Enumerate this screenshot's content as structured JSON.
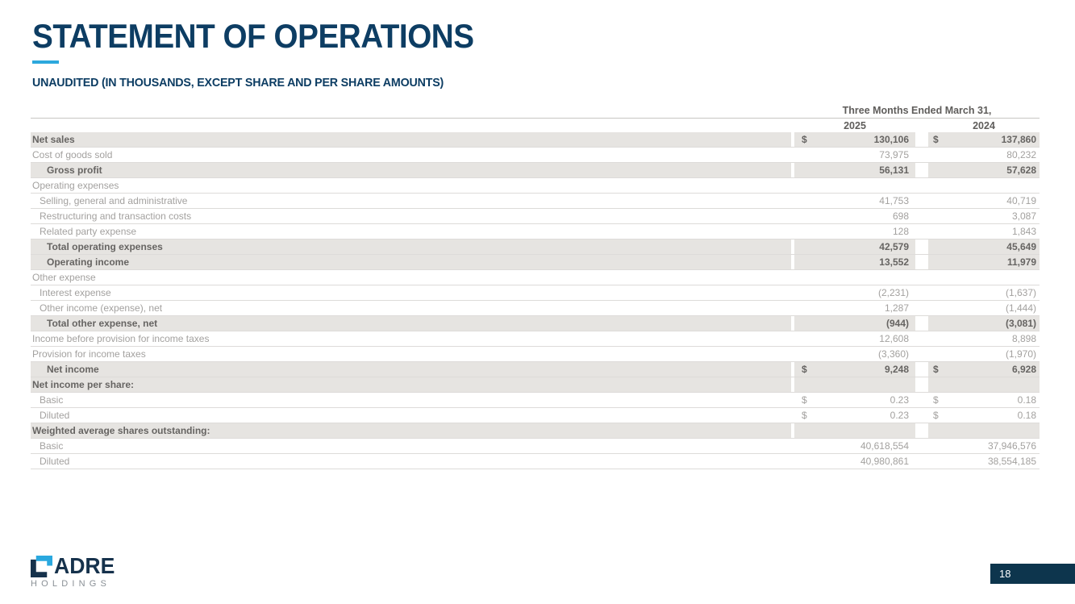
{
  "slide": {
    "title": "STATEMENT OF OPERATIONS",
    "subtitle": "UNAUDITED (IN THOUSANDS, EXCEPT SHARE AND PER SHARE AMOUNTS)",
    "page_number": "18"
  },
  "logo": {
    "brand": "CADRE",
    "brand_rest": "ADRE",
    "subbrand": "HOLDINGS"
  },
  "colors": {
    "title_navy": "#0d3d63",
    "accent_blue": "#2ca8dd",
    "band_gray": "#e6e4e1",
    "regular_text": "#a3a19f",
    "bold_text": "#666462",
    "logo_navy": "#16324c",
    "logo_cyan": "#29a8df",
    "page_box_navy": "#0d354d"
  },
  "table": {
    "period_header": "Three Months Ended March 31,",
    "col_headers": [
      "2025",
      "2024"
    ],
    "dollar_sign": "$",
    "rows": [
      {
        "label": "Net sales",
        "indent": 0,
        "bold": true,
        "band": true,
        "dollar": true,
        "v2025": "130,106",
        "v2024": "137,860"
      },
      {
        "label": "Cost of goods sold",
        "indent": 0,
        "bold": false,
        "band": false,
        "dollar": false,
        "v2025": "73,975",
        "v2024": "80,232"
      },
      {
        "label": "Gross profit",
        "indent": 2,
        "bold": true,
        "band": true,
        "dollar": false,
        "v2025": "56,131",
        "v2024": "57,628"
      },
      {
        "label": "Operating expenses",
        "indent": 0,
        "bold": false,
        "band": false,
        "dollar": false,
        "v2025": "",
        "v2024": ""
      },
      {
        "label": "Selling, general and administrative",
        "indent": 1,
        "bold": false,
        "band": false,
        "dollar": false,
        "v2025": "41,753",
        "v2024": "40,719"
      },
      {
        "label": "Restructuring and transaction costs",
        "indent": 1,
        "bold": false,
        "band": false,
        "dollar": false,
        "v2025": "698",
        "v2024": "3,087"
      },
      {
        "label": "Related party expense",
        "indent": 1,
        "bold": false,
        "band": false,
        "dollar": false,
        "v2025": "128",
        "v2024": "1,843"
      },
      {
        "label": "Total operating expenses",
        "indent": 2,
        "bold": true,
        "band": true,
        "dollar": false,
        "v2025": "42,579",
        "v2024": "45,649"
      },
      {
        "label": "Operating income",
        "indent": 2,
        "bold": true,
        "band": true,
        "dollar": false,
        "v2025": "13,552",
        "v2024": "11,979"
      },
      {
        "label": "Other expense",
        "indent": 0,
        "bold": false,
        "band": false,
        "dollar": false,
        "v2025": "",
        "v2024": ""
      },
      {
        "label": "Interest expense",
        "indent": 1,
        "bold": false,
        "band": false,
        "dollar": false,
        "v2025": "(2,231)",
        "v2024": "(1,637)"
      },
      {
        "label": "Other income (expense), net",
        "indent": 1,
        "bold": false,
        "band": false,
        "dollar": false,
        "v2025": "1,287",
        "v2024": "(1,444)"
      },
      {
        "label": "Total other expense, net",
        "indent": 2,
        "bold": true,
        "band": true,
        "dollar": false,
        "v2025": "(944)",
        "v2024": "(3,081)"
      },
      {
        "label": "Income before provision for income taxes",
        "indent": 0,
        "bold": false,
        "band": false,
        "dollar": false,
        "v2025": "12,608",
        "v2024": "8,898"
      },
      {
        "label": "Provision for income taxes",
        "indent": 0,
        "bold": false,
        "band": false,
        "dollar": false,
        "v2025": "(3,360)",
        "v2024": "(1,970)"
      },
      {
        "label": "Net income",
        "indent": 2,
        "bold": true,
        "band": true,
        "dollar": true,
        "v2025": "9,248",
        "v2024": "6,928"
      },
      {
        "label": "Net income per share:",
        "indent": 0,
        "bold": true,
        "band": true,
        "dollar": false,
        "v2025": "",
        "v2024": ""
      },
      {
        "label": "Basic",
        "indent": 1,
        "bold": false,
        "band": false,
        "dollar": true,
        "v2025": "0.23",
        "v2024": "0.18"
      },
      {
        "label": "Diluted",
        "indent": 1,
        "bold": false,
        "band": false,
        "dollar": true,
        "v2025": "0.23",
        "v2024": "0.18"
      },
      {
        "label": "Weighted average shares outstanding:",
        "indent": 0,
        "bold": true,
        "band": true,
        "dollar": false,
        "v2025": "",
        "v2024": ""
      },
      {
        "label": "Basic",
        "indent": 1,
        "bold": false,
        "band": false,
        "dollar": false,
        "v2025": "40,618,554",
        "v2024": "37,946,576"
      },
      {
        "label": "Diluted",
        "indent": 1,
        "bold": false,
        "band": false,
        "dollar": false,
        "v2025": "40,980,861",
        "v2024": "38,554,185"
      }
    ]
  }
}
